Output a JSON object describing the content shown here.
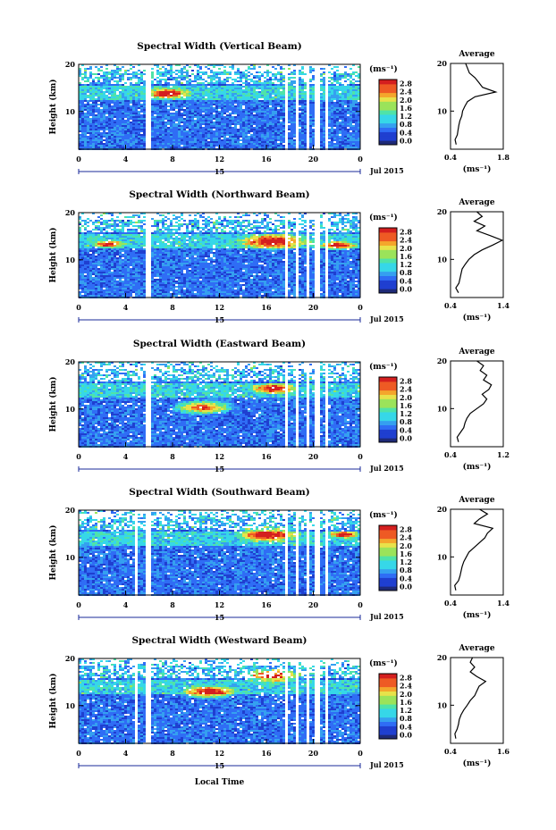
{
  "figure": {
    "xaxis_label": "Local Time",
    "date_text": "Jul 2015",
    "day_label": "15",
    "unit_label": "(ms⁻¹)",
    "colorbar_ticks": [
      "2.8",
      "2.4",
      "2.0",
      "1.6",
      "1.2",
      "0.8",
      "0.4",
      "0.0"
    ],
    "colormap": [
      "#1e2a78",
      "#1f3fd0",
      "#2f6df5",
      "#35a0f0",
      "#36d7e8",
      "#4fe3a8",
      "#9be35a",
      "#e8e24a",
      "#f4a62c",
      "#ee5a24",
      "#d41f1f"
    ]
  },
  "chart_data": [
    {
      "type": "heatmap",
      "title": "Spectral Width (Vertical Beam)",
      "ylabel": "Height (km)",
      "xlim": [
        0,
        24
      ],
      "ylim": [
        2,
        20
      ],
      "x_ticks": [
        "0",
        "4",
        "8",
        "12",
        "16",
        "20",
        "0"
      ],
      "y_ticks": [
        "10",
        "20"
      ],
      "data_gaps_hours": [
        [
          5.7,
          6.0
        ],
        [
          17.4,
          17.8
        ],
        [
          18.4,
          18.6
        ],
        [
          19.4,
          19.6
        ],
        [
          20.1,
          20.5
        ],
        [
          20.9,
          21.1
        ]
      ],
      "profile": {
        "title": "Average",
        "xlabel": "(ms⁻¹)",
        "xlim": [
          0.4,
          1.8
        ],
        "x_ticks": [
          "0.4",
          "1.8"
        ],
        "y_ticks": [
          "10",
          "20"
        ],
        "height_km": [
          3,
          4,
          5,
          6,
          7,
          8,
          9,
          10,
          11,
          12,
          13,
          14,
          15,
          16,
          17,
          18,
          19,
          20
        ],
        "width": [
          0.55,
          0.52,
          0.58,
          0.6,
          0.62,
          0.65,
          0.7,
          0.72,
          0.78,
          0.85,
          1.05,
          1.6,
          1.25,
          1.15,
          1.05,
          0.9,
          0.85,
          0.8
        ]
      }
    },
    {
      "type": "heatmap",
      "title": "Spectral Width (Northward Beam)",
      "ylabel": "Height (km)",
      "xlim": [
        0,
        24
      ],
      "ylim": [
        2,
        20
      ],
      "x_ticks": [
        "0",
        "4",
        "8",
        "12",
        "16",
        "20",
        "0"
      ],
      "y_ticks": [
        "10",
        "20"
      ],
      "data_gaps_hours": [
        [
          5.7,
          6.0
        ],
        [
          17.4,
          17.8
        ],
        [
          18.4,
          18.6
        ],
        [
          19.4,
          19.6
        ],
        [
          20.1,
          20.5
        ],
        [
          20.9,
          21.1
        ]
      ],
      "profile": {
        "title": "Average",
        "xlabel": "(ms⁻¹)",
        "xlim": [
          0.4,
          1.4
        ],
        "x_ticks": [
          "0.4",
          "1.4"
        ],
        "y_ticks": [
          "10",
          "20"
        ],
        "height_km": [
          3,
          4,
          5,
          6,
          7,
          8,
          9,
          10,
          11,
          12,
          13,
          14,
          15,
          16,
          17,
          18,
          19,
          20
        ],
        "width": [
          0.55,
          0.5,
          0.56,
          0.58,
          0.6,
          0.62,
          0.68,
          0.75,
          0.85,
          1.0,
          1.2,
          1.38,
          1.15,
          0.9,
          1.05,
          0.85,
          1.0,
          0.9
        ]
      }
    },
    {
      "type": "heatmap",
      "title": "Spectral Width (Eastward Beam)",
      "ylabel": "Height (km)",
      "xlim": [
        0,
        24
      ],
      "ylim": [
        2,
        20
      ],
      "x_ticks": [
        "0",
        "4",
        "8",
        "12",
        "16",
        "20",
        "0"
      ],
      "y_ticks": [
        "10",
        "20"
      ],
      "data_gaps_hours": [
        [
          5.7,
          6.0
        ],
        [
          17.4,
          17.8
        ],
        [
          18.4,
          18.6
        ],
        [
          19.4,
          19.6
        ],
        [
          20.1,
          20.5
        ],
        [
          20.9,
          21.1
        ]
      ],
      "profile": {
        "title": "Average",
        "xlabel": "(ms⁻¹)",
        "xlim": [
          0.4,
          1.2
        ],
        "x_ticks": [
          "0.4",
          "1.2"
        ],
        "y_ticks": [
          "10",
          "20"
        ],
        "height_km": [
          3,
          4,
          5,
          6,
          7,
          8,
          9,
          10,
          11,
          12,
          13,
          14,
          15,
          16,
          17,
          18,
          19,
          20
        ],
        "width": [
          0.52,
          0.5,
          0.55,
          0.6,
          0.62,
          0.65,
          0.7,
          0.8,
          0.9,
          0.95,
          0.88,
          0.98,
          1.02,
          0.9,
          0.95,
          0.85,
          0.9,
          0.8
        ]
      }
    },
    {
      "type": "heatmap",
      "title": "Spectral Width (Southward Beam)",
      "ylabel": "Height (km)",
      "xlim": [
        0,
        24
      ],
      "ylim": [
        2,
        20
      ],
      "x_ticks": [
        "0",
        "4",
        "8",
        "12",
        "16",
        "20",
        "0"
      ],
      "y_ticks": [
        "10",
        "20"
      ],
      "data_gaps_hours": [
        [
          4.7,
          4.9
        ],
        [
          5.7,
          6.0
        ],
        [
          17.4,
          17.8
        ],
        [
          18.4,
          18.6
        ],
        [
          19.4,
          19.6
        ],
        [
          20.1,
          20.5
        ],
        [
          20.9,
          21.1
        ]
      ],
      "profile": {
        "title": "Average",
        "xlabel": "(ms⁻¹)",
        "xlim": [
          0.4,
          1.4
        ],
        "x_ticks": [
          "0.4",
          "1.4"
        ],
        "y_ticks": [
          "10",
          "20"
        ],
        "height_km": [
          3,
          4,
          5,
          6,
          7,
          8,
          9,
          10,
          11,
          12,
          13,
          14,
          15,
          16,
          17,
          18,
          19,
          20
        ],
        "width": [
          0.5,
          0.48,
          0.55,
          0.58,
          0.6,
          0.62,
          0.65,
          0.7,
          0.75,
          0.85,
          0.95,
          1.05,
          1.1,
          1.2,
          0.85,
          0.95,
          1.1,
          0.95
        ]
      }
    },
    {
      "type": "heatmap",
      "title": "Spectral Width (Westward Beam)",
      "ylabel": "Height (km)",
      "xlim": [
        0,
        24
      ],
      "ylim": [
        2,
        20
      ],
      "x_ticks": [
        "0",
        "4",
        "8",
        "12",
        "16",
        "20",
        "0"
      ],
      "y_ticks": [
        "10",
        "20"
      ],
      "data_gaps_hours": [
        [
          4.7,
          4.9
        ],
        [
          5.7,
          6.0
        ],
        [
          17.4,
          17.8
        ],
        [
          18.4,
          18.6
        ],
        [
          19.4,
          19.6
        ],
        [
          20.1,
          20.5
        ],
        [
          20.9,
          21.1
        ]
      ],
      "profile": {
        "title": "Average",
        "xlabel": "(ms⁻¹)",
        "xlim": [
          0.4,
          1.6
        ],
        "x_ticks": [
          "0.4",
          "1.6"
        ],
        "y_ticks": [
          "10",
          "20"
        ],
        "height_km": [
          3,
          4,
          5,
          6,
          7,
          8,
          9,
          10,
          11,
          12,
          13,
          14,
          15,
          16,
          17,
          18,
          19,
          20
        ],
        "width": [
          0.52,
          0.5,
          0.55,
          0.58,
          0.6,
          0.64,
          0.7,
          0.78,
          0.85,
          0.95,
          1.0,
          1.05,
          1.2,
          1.0,
          0.85,
          0.95,
          0.85,
          0.9
        ]
      }
    }
  ]
}
